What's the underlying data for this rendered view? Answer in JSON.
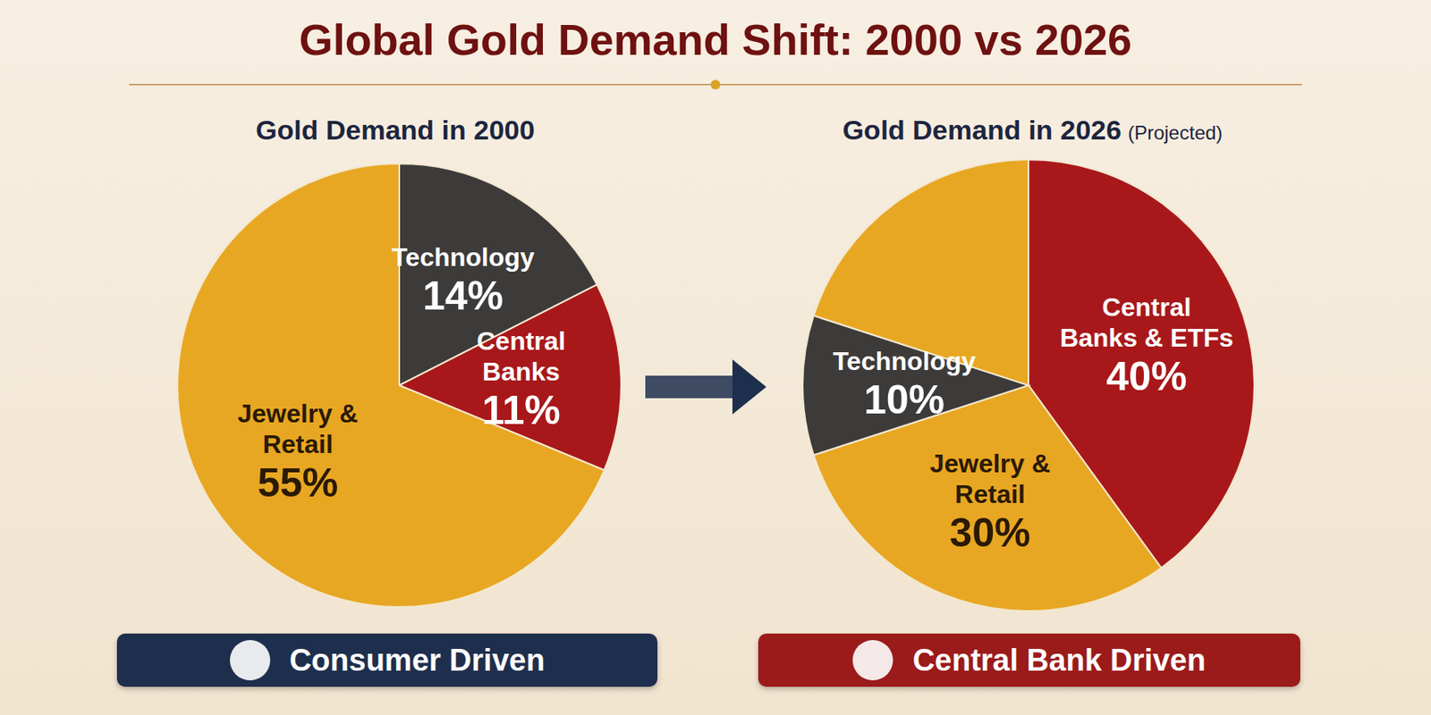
{
  "title": "Global Gold Demand Shift: 2000 vs 2026",
  "chart_data": [
    {
      "type": "pie",
      "title": "Gold Demand in 2000",
      "categories": [
        "Technology",
        "Central Banks",
        "Jewelry & Retail"
      ],
      "values": [
        14,
        11,
        55
      ],
      "value_labels": [
        "14%",
        "11%",
        "55%"
      ],
      "colors": [
        "#3d3b3a",
        "#a8181a",
        "#e8a722"
      ],
      "data_labels": true,
      "annotation": "Consumer Driven"
    },
    {
      "type": "pie",
      "title": "Gold Demand in 2026",
      "subtitle": "(Projected)",
      "categories": [
        "Central Banks & ETFs",
        "Jewelry & Retail",
        "Technology",
        null
      ],
      "values": [
        40,
        30,
        10,
        20
      ],
      "value_labels": [
        "40%",
        "30%",
        "10%",
        null
      ],
      "colors": [
        "#a8181a",
        "#e8a722",
        "#3d3b3a",
        "#e8a722"
      ],
      "data_labels": true,
      "annotation": "Central Bank Driven"
    }
  ]
}
